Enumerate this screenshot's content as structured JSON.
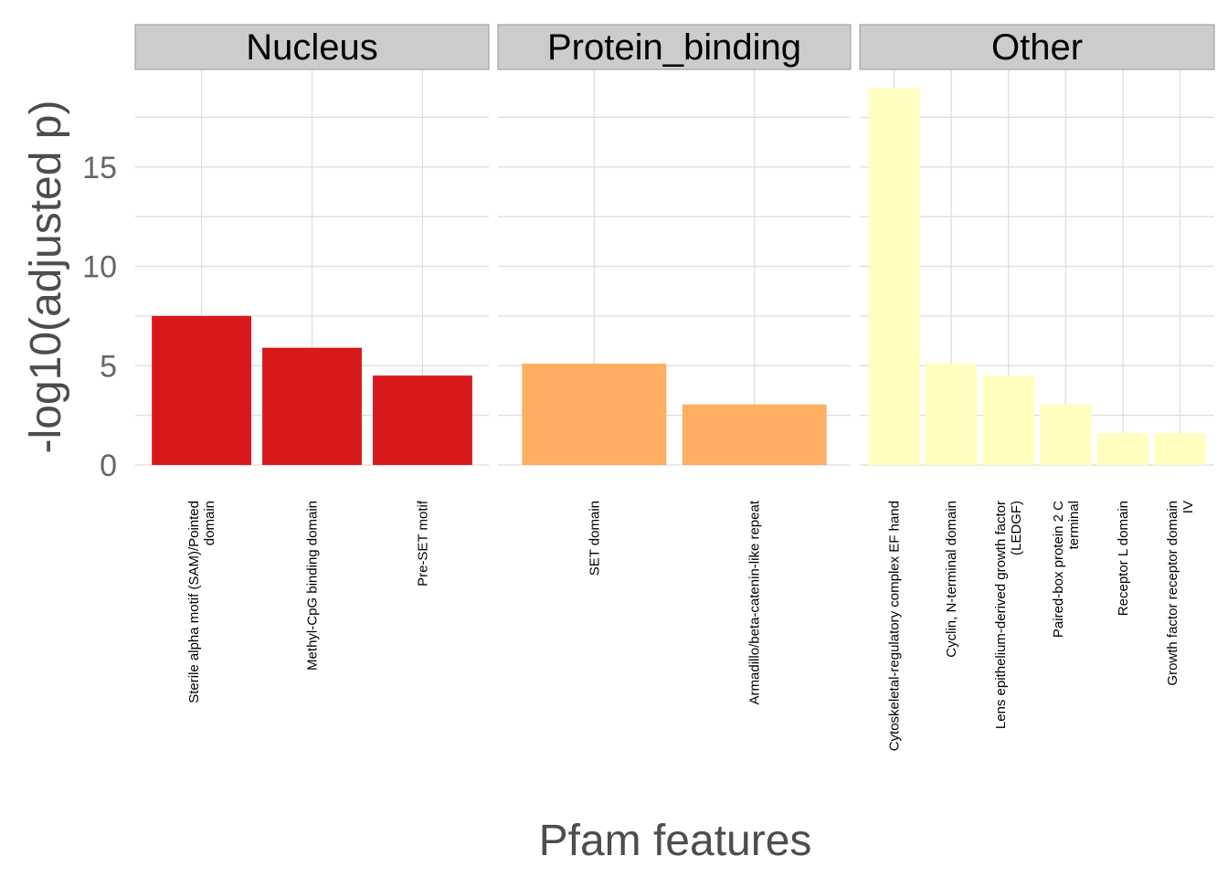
{
  "chart_data": {
    "type": "bar",
    "xlabel": "Pfam features",
    "ylabel": "-log10(adjusted p)",
    "ylim": [
      0,
      19.4
    ],
    "yticks": [
      0,
      5,
      10,
      15
    ],
    "grid": true,
    "facets": [
      {
        "name": "Nucleus",
        "color": "#d7191c",
        "categories": [
          [
            "Sterile alpha motif (SAM)/Pointed",
            "domain"
          ],
          [
            "Methyl-CpG binding domain"
          ],
          [
            "Pre-SET motif"
          ]
        ],
        "values": [
          7.5,
          5.9,
          4.5
        ]
      },
      {
        "name": "Protein_binding",
        "color": "#fdae61",
        "categories": [
          [
            "SET domain"
          ],
          [
            "Armadillo/beta-catenin-like repeat"
          ]
        ],
        "values": [
          5.1,
          3.05
        ]
      },
      {
        "name": "Other",
        "color": "#ffffbf",
        "categories": [
          [
            "Cytoskeletal-regulatory complex EF hand"
          ],
          [
            "Cyclin, N-terminal domain"
          ],
          [
            "Lens epithelium-derived growth factor",
            "(LEDGF)"
          ],
          [
            "Paired-box protein 2 C",
            "terminal"
          ],
          [
            "Receptor L domain"
          ],
          [
            "Growth factor receptor domain",
            "IV"
          ]
        ],
        "values": [
          18.95,
          5.1,
          4.5,
          3.05,
          1.6,
          1.6
        ]
      }
    ]
  }
}
